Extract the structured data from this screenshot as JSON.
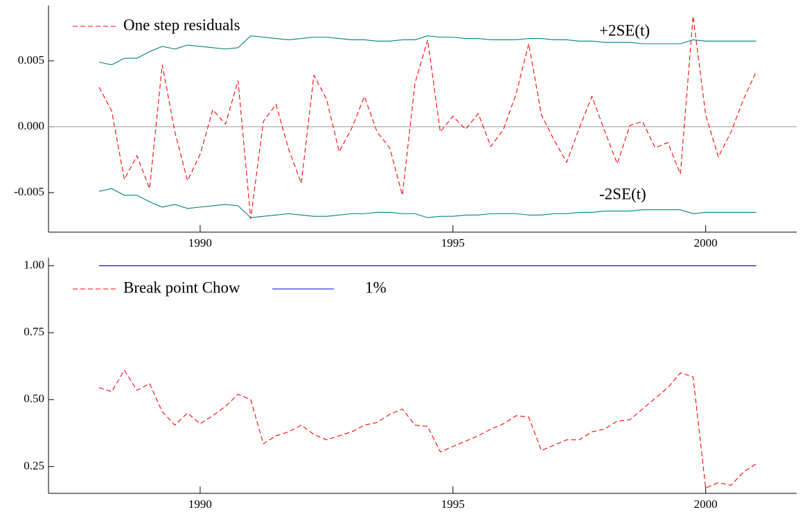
{
  "chart_data": [
    {
      "type": "line",
      "x": [
        1988,
        1988.25,
        1988.5,
        1988.75,
        1989,
        1989.25,
        1989.5,
        1989.75,
        1990,
        1990.25,
        1990.5,
        1990.75,
        1991,
        1991.25,
        1991.5,
        1991.75,
        1992,
        1992.25,
        1992.5,
        1992.75,
        1993,
        1993.25,
        1993.5,
        1993.75,
        1994,
        1994.25,
        1994.5,
        1994.75,
        1995,
        1995.25,
        1995.5,
        1995.75,
        1996,
        1996.25,
        1996.5,
        1996.75,
        1997,
        1997.25,
        1997.5,
        1997.75,
        1998,
        1998.25,
        1998.5,
        1998.75,
        1999,
        1999.25,
        1999.5,
        1999.75,
        2000,
        2000.25,
        2000.5,
        2000.75,
        2001
      ],
      "series": [
        {
          "name": "One step residuals",
          "color": "#ff0000",
          "dash": true,
          "values": [
            0.003,
            0.0012,
            -0.004,
            -0.0022,
            -0.0047,
            0.0047,
            -0.0004,
            -0.0041,
            -0.0021,
            0.0013,
            0.0002,
            0.0035,
            -0.007,
            0.0004,
            0.0017,
            -0.0017,
            -0.0043,
            0.0039,
            0.0021,
            -0.0019,
            -0.0001,
            0.0023,
            -0.0004,
            -0.0016,
            -0.0052,
            0.0033,
            0.0066,
            -0.0004,
            0.0008,
            -0.0002,
            0.001,
            -0.0015,
            -0.0002,
            0.0025,
            0.0063,
            0.0009,
            -0.001,
            -0.0027,
            -0.0001,
            0.0023,
            -0.0003,
            -0.0028,
            0.0001,
            0.0004,
            -0.0016,
            -0.0012,
            -0.0036,
            0.0084,
            0.0009,
            -0.0023,
            -0.0004,
            0.0021,
            0.0042
          ]
        },
        {
          "name": "+2SE(t)",
          "color": "#008080",
          "dash": false,
          "values": [
            0.0049,
            0.0047,
            0.0052,
            0.0052,
            0.0057,
            0.0061,
            0.0059,
            0.0062,
            0.0061,
            0.006,
            0.0059,
            0.006,
            0.0069,
            0.0068,
            0.0067,
            0.0066,
            0.0067,
            0.0068,
            0.0068,
            0.0067,
            0.0066,
            0.0066,
            0.0065,
            0.0065,
            0.0066,
            0.0066,
            0.0069,
            0.0068,
            0.0068,
            0.0067,
            0.0067,
            0.0066,
            0.0066,
            0.0066,
            0.0067,
            0.0067,
            0.0066,
            0.0066,
            0.0065,
            0.0065,
            0.0064,
            0.0064,
            0.0064,
            0.0063,
            0.0063,
            0.0063,
            0.0063,
            0.0066,
            0.0065,
            0.0065,
            0.0065,
            0.0065,
            0.0065
          ]
        },
        {
          "name": "-2SE(t)",
          "color": "#008080",
          "dash": false,
          "values": [
            -0.0049,
            -0.0047,
            -0.0052,
            -0.0052,
            -0.0057,
            -0.0061,
            -0.0059,
            -0.0062,
            -0.0061,
            -0.006,
            -0.0059,
            -0.006,
            -0.0069,
            -0.0068,
            -0.0067,
            -0.0066,
            -0.0067,
            -0.0068,
            -0.0068,
            -0.0067,
            -0.0066,
            -0.0066,
            -0.0065,
            -0.0065,
            -0.0066,
            -0.0066,
            -0.0069,
            -0.0068,
            -0.0068,
            -0.0067,
            -0.0067,
            -0.0066,
            -0.0066,
            -0.0066,
            -0.0067,
            -0.0067,
            -0.0066,
            -0.0066,
            -0.0065,
            -0.0065,
            -0.0064,
            -0.0064,
            -0.0064,
            -0.0063,
            -0.0063,
            -0.0063,
            -0.0063,
            -0.0066,
            -0.0065,
            -0.0065,
            -0.0065,
            -0.0065,
            -0.0065
          ]
        }
      ],
      "hline": 0,
      "xlim": [
        1987,
        2001.8
      ],
      "xticks": [
        1990,
        1995,
        2000
      ],
      "ylim": [
        -0.008,
        0.0092
      ],
      "yticks": [
        {
          "value": -0.005,
          "label": "-0.005"
        },
        {
          "value": 0,
          "label": "0.000"
        },
        {
          "value": 0.005,
          "label": "0.005"
        }
      ]
    },
    {
      "type": "line",
      "x": [
        1988,
        1988.25,
        1988.5,
        1988.75,
        1989,
        1989.25,
        1989.5,
        1989.75,
        1990,
        1990.25,
        1990.5,
        1990.75,
        1991,
        1991.25,
        1991.5,
        1991.75,
        1992,
        1992.25,
        1992.5,
        1992.75,
        1993,
        1993.25,
        1993.5,
        1993.75,
        1994,
        1994.25,
        1994.5,
        1994.75,
        1995,
        1995.25,
        1995.5,
        1995.75,
        1996,
        1996.25,
        1996.5,
        1996.75,
        1997,
        1997.25,
        1997.5,
        1997.75,
        1998,
        1998.25,
        1998.5,
        1998.75,
        1999,
        1999.25,
        1999.5,
        1999.75,
        2000,
        2000.25,
        2000.5,
        2000.75,
        2001
      ],
      "series": [
        {
          "name": "Break point Chow",
          "color": "#ff0000",
          "dash": true,
          "values": [
            0.545,
            0.53,
            0.61,
            0.535,
            0.56,
            0.455,
            0.405,
            0.45,
            0.41,
            0.44,
            0.475,
            0.52,
            0.5,
            0.335,
            0.365,
            0.38,
            0.405,
            0.37,
            0.35,
            0.365,
            0.38,
            0.405,
            0.415,
            0.445,
            0.465,
            0.405,
            0.4,
            0.305,
            0.325,
            0.345,
            0.365,
            0.39,
            0.41,
            0.44,
            0.435,
            0.31,
            0.33,
            0.35,
            0.35,
            0.38,
            0.39,
            0.42,
            0.425,
            0.465,
            0.505,
            0.545,
            0.6,
            0.585,
            0.17,
            0.19,
            0.18,
            0.23,
            0.26
          ]
        },
        {
          "name": "1%",
          "color": "#0000cc",
          "dash": false,
          "x": [
            1988,
            2001
          ],
          "values": [
            1,
            1
          ]
        }
      ],
      "xlim": [
        1987,
        2001.8
      ],
      "xticks": [
        1990,
        1995,
        2000
      ],
      "ylim": [
        0.15,
        1.03
      ],
      "yticks": [
        {
          "value": 0.25,
          "label": "0.25"
        },
        {
          "value": 0.5,
          "label": "0.50"
        },
        {
          "value": 0.75,
          "label": "0.75"
        },
        {
          "value": 1,
          "label": "1.00"
        }
      ]
    }
  ]
}
